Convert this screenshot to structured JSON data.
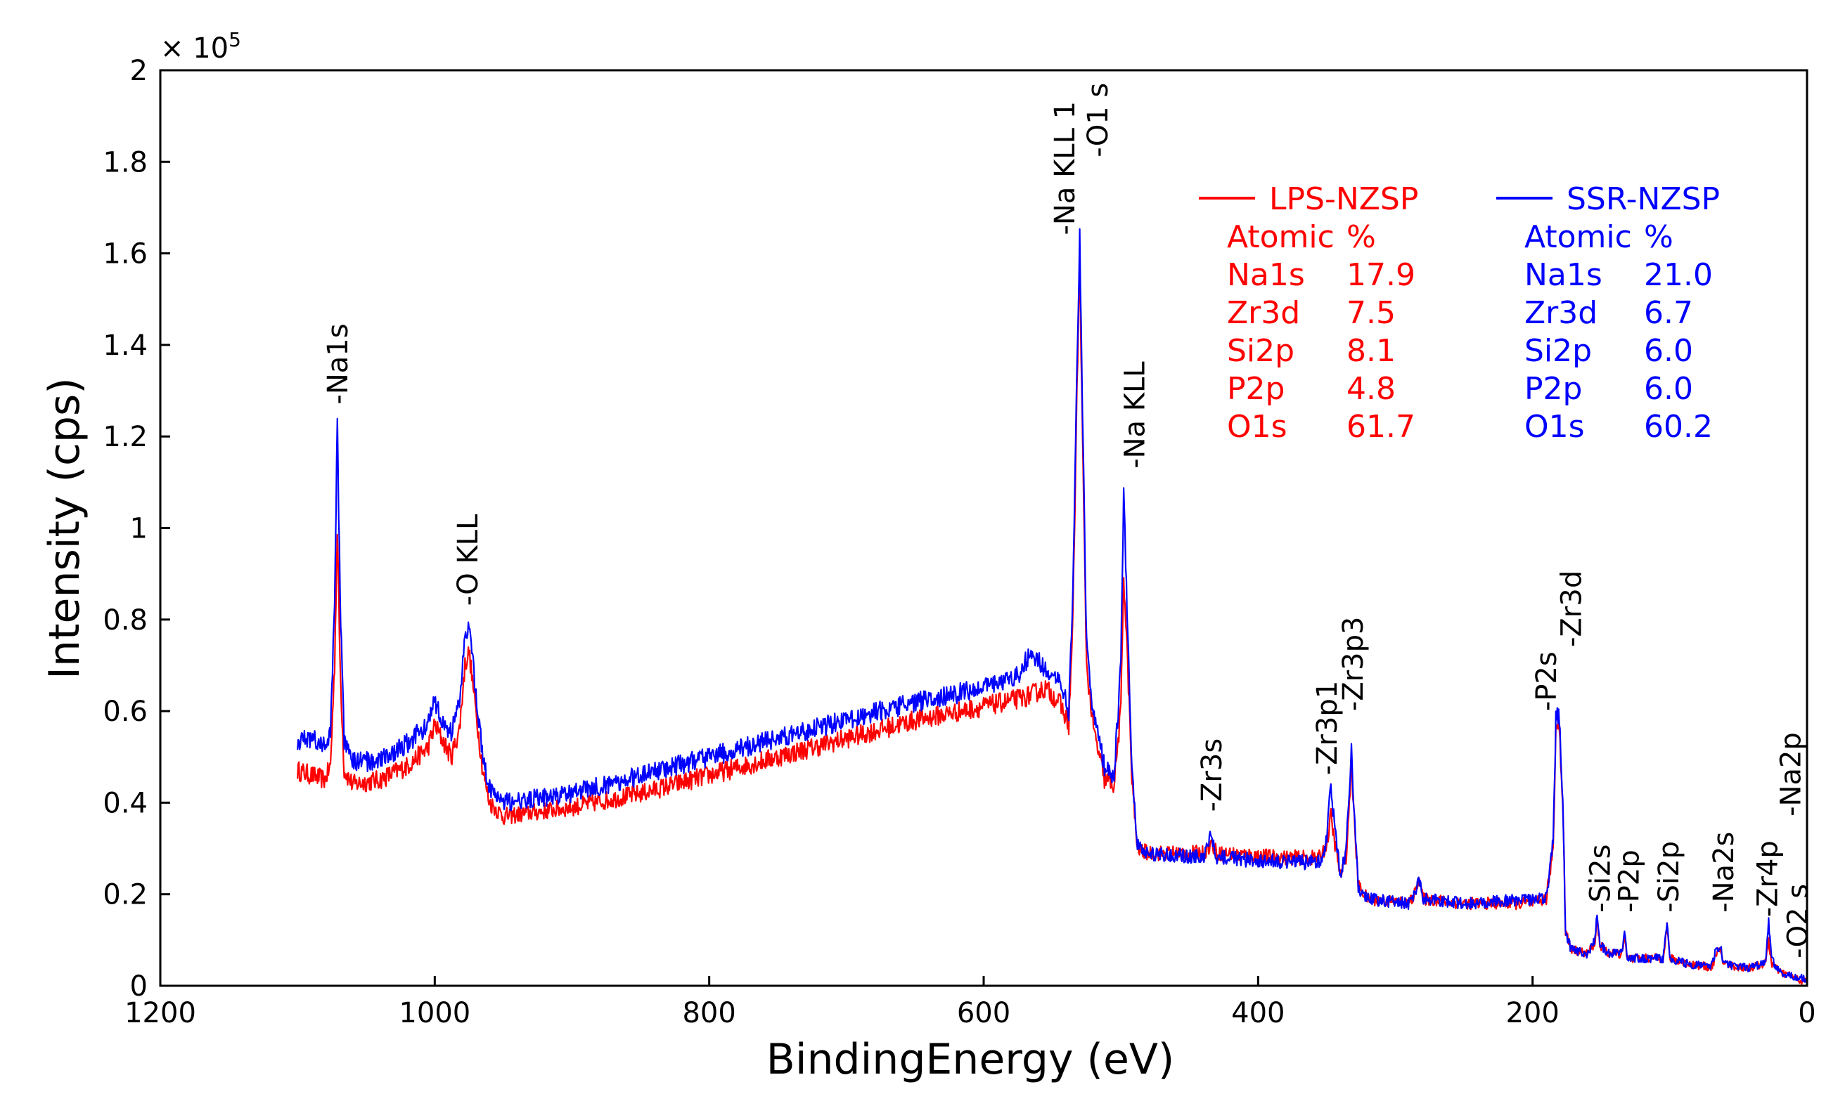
{
  "chart_data": {
    "type": "line",
    "title": "",
    "xlabel": "BindingEnergy (eV)",
    "ylabel": "Intensity (cps)",
    "y_multiplier_label": "× 10",
    "y_multiplier_exponent": "5",
    "xlim": [
      1200,
      0
    ],
    "ylim": [
      0,
      2
    ],
    "x_ticks": [
      1200,
      1000,
      800,
      600,
      400,
      200,
      0
    ],
    "x_tick_labels": [
      "1200",
      "1000",
      "800",
      "600",
      "400",
      "200",
      "0"
    ],
    "y_ticks": [
      0,
      0.2,
      0.4,
      0.6,
      0.8,
      1,
      1.2,
      1.4,
      1.6,
      1.8,
      2
    ],
    "y_tick_labels": [
      "0",
      "0.2",
      "0.4",
      "0.6",
      "0.8",
      "1",
      "1.2",
      "1.4",
      "1.6",
      "1.8",
      "2"
    ],
    "grid": false,
    "legend_position": "top-right",
    "series": [
      {
        "name": "LPS-NZSP",
        "color": "#ff0000",
        "noise": 0.022,
        "points": [
          [
            1100,
            0.47
          ],
          [
            1090,
            0.46
          ],
          [
            1080,
            0.45
          ],
          [
            1076,
            0.48
          ],
          [
            1073,
            0.7
          ],
          [
            1071,
            1.0
          ],
          [
            1069,
            0.7
          ],
          [
            1066,
            0.47
          ],
          [
            1060,
            0.44
          ],
          [
            1040,
            0.45
          ],
          [
            1020,
            0.48
          ],
          [
            1005,
            0.52
          ],
          [
            1000,
            0.57
          ],
          [
            995,
            0.54
          ],
          [
            988,
            0.5
          ],
          [
            982,
            0.56
          ],
          [
            978,
            0.7
          ],
          [
            975,
            0.73
          ],
          [
            970,
            0.6
          ],
          [
            965,
            0.47
          ],
          [
            960,
            0.4
          ],
          [
            950,
            0.37
          ],
          [
            900,
            0.39
          ],
          [
            850,
            0.42
          ],
          [
            800,
            0.46
          ],
          [
            750,
            0.5
          ],
          [
            700,
            0.54
          ],
          [
            650,
            0.58
          ],
          [
            600,
            0.61
          ],
          [
            570,
            0.63
          ],
          [
            555,
            0.65
          ],
          [
            545,
            0.62
          ],
          [
            538,
            0.57
          ],
          [
            535,
            0.8
          ],
          [
            532,
            1.3
          ],
          [
            530,
            1.58
          ],
          [
            528,
            1.2
          ],
          [
            525,
            0.7
          ],
          [
            520,
            0.56
          ],
          [
            512,
            0.45
          ],
          [
            505,
            0.44
          ],
          [
            500,
            0.6
          ],
          [
            498,
            0.9
          ],
          [
            495,
            0.7
          ],
          [
            492,
            0.45
          ],
          [
            488,
            0.3
          ],
          [
            480,
            0.29
          ],
          [
            440,
            0.29
          ],
          [
            434,
            0.31
          ],
          [
            430,
            0.29
          ],
          [
            380,
            0.28
          ],
          [
            355,
            0.28
          ],
          [
            350,
            0.31
          ],
          [
            347,
            0.37
          ],
          [
            344,
            0.31
          ],
          [
            340,
            0.24
          ],
          [
            336,
            0.28
          ],
          [
            334,
            0.37
          ],
          [
            332,
            0.5
          ],
          [
            330,
            0.36
          ],
          [
            327,
            0.22
          ],
          [
            320,
            0.19
          ],
          [
            290,
            0.18
          ],
          [
            286,
            0.2
          ],
          [
            283,
            0.24
          ],
          [
            280,
            0.19
          ],
          [
            250,
            0.18
          ],
          [
            200,
            0.18
          ],
          [
            190,
            0.19
          ],
          [
            185,
            0.3
          ],
          [
            183,
            0.56
          ],
          [
            181,
            0.59
          ],
          [
            178,
            0.4
          ],
          [
            176,
            0.12
          ],
          [
            172,
            0.08
          ],
          [
            160,
            0.07
          ],
          [
            155,
            0.09
          ],
          [
            153,
            0.14
          ],
          [
            151,
            0.09
          ],
          [
            145,
            0.07
          ],
          [
            135,
            0.07
          ],
          [
            133,
            0.11
          ],
          [
            131,
            0.06
          ],
          [
            125,
            0.06
          ],
          [
            105,
            0.06
          ],
          [
            102,
            0.13
          ],
          [
            100,
            0.06
          ],
          [
            90,
            0.05
          ],
          [
            70,
            0.04
          ],
          [
            67,
            0.06
          ],
          [
            63,
            0.08
          ],
          [
            61,
            0.05
          ],
          [
            50,
            0.04
          ],
          [
            45,
            0.04
          ],
          [
            40,
            0.04
          ],
          [
            30,
            0.05
          ],
          [
            28,
            0.1
          ],
          [
            26,
            0.05
          ],
          [
            20,
            0.03
          ],
          [
            10,
            0.02
          ],
          [
            4,
            0.01
          ],
          [
            0,
            0.01
          ]
        ]
      },
      {
        "name": "SSR-NZSP",
        "color": "#0000ff",
        "noise": 0.022,
        "points": [
          [
            1100,
            0.53
          ],
          [
            1090,
            0.54
          ],
          [
            1080,
            0.52
          ],
          [
            1076,
            0.55
          ],
          [
            1073,
            0.85
          ],
          [
            1071,
            1.23
          ],
          [
            1069,
            0.85
          ],
          [
            1066,
            0.53
          ],
          [
            1060,
            0.49
          ],
          [
            1040,
            0.49
          ],
          [
            1020,
            0.53
          ],
          [
            1005,
            0.57
          ],
          [
            1000,
            0.62
          ],
          [
            995,
            0.58
          ],
          [
            988,
            0.55
          ],
          [
            982,
            0.62
          ],
          [
            978,
            0.76
          ],
          [
            975,
            0.79
          ],
          [
            970,
            0.64
          ],
          [
            965,
            0.5
          ],
          [
            960,
            0.43
          ],
          [
            950,
            0.4
          ],
          [
            900,
            0.42
          ],
          [
            850,
            0.46
          ],
          [
            800,
            0.5
          ],
          [
            750,
            0.54
          ],
          [
            700,
            0.58
          ],
          [
            650,
            0.62
          ],
          [
            600,
            0.65
          ],
          [
            575,
            0.68
          ],
          [
            565,
            0.73
          ],
          [
            555,
            0.69
          ],
          [
            545,
            0.67
          ],
          [
            538,
            0.6
          ],
          [
            535,
            0.85
          ],
          [
            532,
            1.35
          ],
          [
            530,
            1.64
          ],
          [
            528,
            1.25
          ],
          [
            525,
            0.75
          ],
          [
            520,
            0.59
          ],
          [
            512,
            0.48
          ],
          [
            505,
            0.46
          ],
          [
            500,
            0.7
          ],
          [
            498,
            1.08
          ],
          [
            495,
            0.78
          ],
          [
            492,
            0.48
          ],
          [
            488,
            0.31
          ],
          [
            480,
            0.29
          ],
          [
            440,
            0.28
          ],
          [
            434,
            0.33
          ],
          [
            430,
            0.28
          ],
          [
            380,
            0.27
          ],
          [
            355,
            0.27
          ],
          [
            350,
            0.32
          ],
          [
            347,
            0.44
          ],
          [
            344,
            0.34
          ],
          [
            340,
            0.24
          ],
          [
            336,
            0.29
          ],
          [
            334,
            0.4
          ],
          [
            332,
            0.51
          ],
          [
            330,
            0.38
          ],
          [
            327,
            0.21
          ],
          [
            320,
            0.19
          ],
          [
            290,
            0.18
          ],
          [
            286,
            0.2
          ],
          [
            283,
            0.24
          ],
          [
            280,
            0.19
          ],
          [
            250,
            0.18
          ],
          [
            200,
            0.19
          ],
          [
            190,
            0.19
          ],
          [
            185,
            0.32
          ],
          [
            183,
            0.58
          ],
          [
            181,
            0.6
          ],
          [
            178,
            0.42
          ],
          [
            176,
            0.12
          ],
          [
            172,
            0.08
          ],
          [
            160,
            0.07
          ],
          [
            155,
            0.1
          ],
          [
            153,
            0.15
          ],
          [
            151,
            0.09
          ],
          [
            145,
            0.07
          ],
          [
            135,
            0.07
          ],
          [
            133,
            0.12
          ],
          [
            131,
            0.06
          ],
          [
            125,
            0.06
          ],
          [
            105,
            0.06
          ],
          [
            102,
            0.14
          ],
          [
            100,
            0.06
          ],
          [
            90,
            0.05
          ],
          [
            70,
            0.04
          ],
          [
            67,
            0.07
          ],
          [
            63,
            0.09
          ],
          [
            61,
            0.05
          ],
          [
            50,
            0.04
          ],
          [
            45,
            0.04
          ],
          [
            40,
            0.04
          ],
          [
            30,
            0.05
          ],
          [
            28,
            0.14
          ],
          [
            26,
            0.06
          ],
          [
            20,
            0.03
          ],
          [
            10,
            0.02
          ],
          [
            4,
            0.02
          ],
          [
            0,
            0.01
          ]
        ]
      }
    ],
    "annotations": [
      {
        "text": "-Na1s",
        "x": 1071,
        "y": 1.27
      },
      {
        "text": "-O KLL",
        "x": 976,
        "y": 0.83
      },
      {
        "text": "-Na KLL 1",
        "x": 541,
        "y": 1.64
      },
      {
        "text": "-O1 s",
        "x": 517,
        "y": 1.81
      },
      {
        "text": "-Na KLL",
        "x": 490,
        "y": 1.13
      },
      {
        "text": "-Zr3s",
        "x": 434,
        "y": 0.38
      },
      {
        "text": "-Zr3p1",
        "x": 350,
        "y": 0.46
      },
      {
        "text": "-Zr3p3",
        "x": 331,
        "y": 0.6
      },
      {
        "text": "-P2s",
        "x": 190,
        "y": 0.6
      },
      {
        "text": "-Zr3d",
        "x": 172,
        "y": 0.74
      },
      {
        "text": "-Si2s",
        "x": 151,
        "y": 0.16
      },
      {
        "text": "-P2p",
        "x": 130,
        "y": 0.16
      },
      {
        "text": "-Si2p",
        "x": 101,
        "y": 0.16
      },
      {
        "text": "-Na2s",
        "x": 61,
        "y": 0.16
      },
      {
        "text": "-Zr4p",
        "x": 29,
        "y": 0.15
      },
      {
        "text": "-Na2p",
        "x": 12,
        "y": 0.37
      },
      {
        "text": "-O2 s",
        "x": 7,
        "y": 0.06
      }
    ],
    "composition_tables": [
      {
        "series": "LPS-NZSP",
        "color": "#ff0000",
        "header": [
          "Atomic",
          "%"
        ],
        "rows": [
          [
            "Na1s",
            "17.9"
          ],
          [
            "Zr3d",
            "7.5"
          ],
          [
            "Si2p",
            "8.1"
          ],
          [
            "P2p",
            "4.8"
          ],
          [
            "O1s",
            "61.7"
          ]
        ]
      },
      {
        "series": "SSR-NZSP",
        "color": "#0000ff",
        "header": [
          "Atomic",
          "%"
        ],
        "rows": [
          [
            "Na1s",
            "21.0"
          ],
          [
            "Zr3d",
            "6.7"
          ],
          [
            "Si2p",
            "6.0"
          ],
          [
            "P2p",
            "6.0"
          ],
          [
            "O1s",
            "60.2"
          ]
        ]
      }
    ]
  }
}
